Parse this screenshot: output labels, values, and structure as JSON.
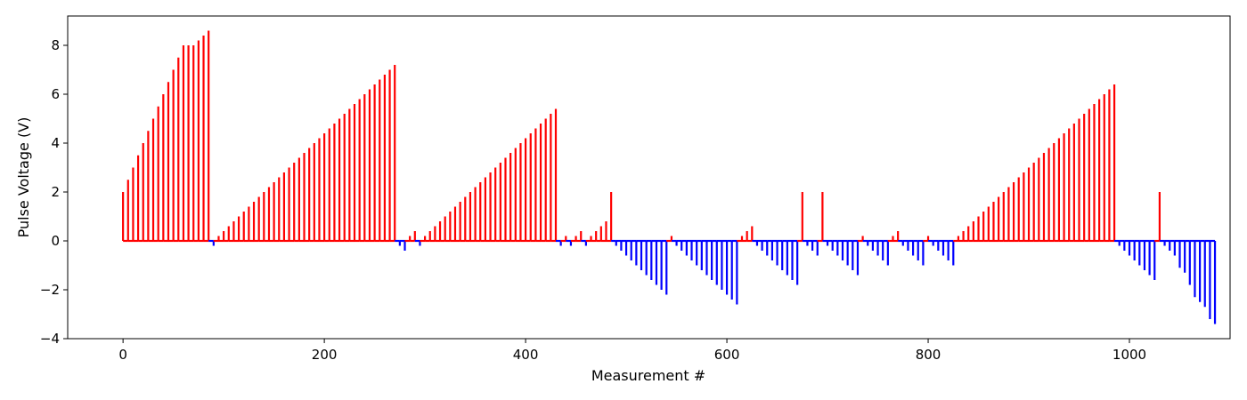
{
  "chart_data": {
    "type": "bar",
    "title": "",
    "xlabel": "Measurement #",
    "ylabel": "Pulse Voltage (V)",
    "xlim": [
      -55,
      1100
    ],
    "ylim": [
      -4,
      9.2
    ],
    "xticks": [
      0,
      200,
      400,
      600,
      800,
      1000
    ],
    "yticks": [
      -4,
      -2,
      0,
      2,
      4,
      6,
      8
    ],
    "grid": false,
    "legend": "none",
    "colors": {
      "positive": "#ff0000",
      "negative": "#0000ff"
    },
    "bar_step": 5,
    "series": [
      {
        "values": [
          2.0,
          2.5,
          3.0,
          3.5,
          4.0,
          4.5,
          5.0,
          5.5,
          6.0,
          6.5,
          7.0,
          7.5,
          8.0,
          8.0,
          8.0,
          8.2,
          8.4,
          8.6,
          -0.2,
          0.2,
          0.4,
          0.6,
          0.8,
          1.0,
          1.2,
          1.4,
          1.6,
          1.8,
          2.0,
          2.2,
          2.4,
          2.6,
          2.8,
          3.0,
          3.2,
          3.4,
          3.6,
          3.8,
          4.0,
          4.2,
          4.4,
          4.6,
          4.8,
          5.0,
          5.2,
          5.4,
          5.6,
          5.8,
          6.0,
          6.2,
          6.4,
          6.6,
          6.8,
          7.0,
          7.2,
          -0.2,
          -0.4,
          0.2,
          0.4,
          -0.2,
          0.2,
          0.4,
          0.6,
          0.8,
          1.0,
          1.2,
          1.4,
          1.6,
          1.8,
          2.0,
          2.2,
          2.4,
          2.6,
          2.8,
          3.0,
          3.2,
          3.4,
          3.6,
          3.8,
          4.0,
          4.2,
          4.4,
          4.6,
          4.8,
          5.0,
          5.2,
          5.4,
          -0.2,
          0.2,
          -0.2,
          0.2,
          0.4,
          -0.2,
          0.2,
          0.4,
          0.6,
          0.8,
          2.0,
          -0.2,
          -0.4,
          -0.6,
          -0.8,
          -1.0,
          -1.2,
          -1.4,
          -1.6,
          -1.8,
          -2.0,
          -2.2,
          0.2,
          -0.2,
          -0.4,
          -0.6,
          -0.8,
          -1.0,
          -1.2,
          -1.4,
          -1.6,
          -1.8,
          -2.0,
          -2.2,
          -2.4,
          -2.6,
          0.2,
          0.4,
          0.6,
          -0.2,
          -0.4,
          -0.6,
          -0.8,
          -1.0,
          -1.2,
          -1.4,
          -1.6,
          -1.8,
          2.0,
          -0.2,
          -0.4,
          -0.6,
          2.0,
          -0.2,
          -0.4,
          -0.6,
          -0.8,
          -1.0,
          -1.2,
          -1.4,
          0.2,
          -0.2,
          -0.4,
          -0.6,
          -0.8,
          -1.0,
          0.2,
          0.4,
          -0.2,
          -0.4,
          -0.6,
          -0.8,
          -1.0,
          0.2,
          -0.2,
          -0.4,
          -0.6,
          -0.8,
          -1.0,
          0.2,
          0.4,
          0.6,
          0.8,
          1.0,
          1.2,
          1.4,
          1.6,
          1.8,
          2.0,
          2.2,
          2.4,
          2.6,
          2.8,
          3.0,
          3.2,
          3.4,
          3.6,
          3.8,
          4.0,
          4.2,
          4.4,
          4.6,
          4.8,
          5.0,
          5.2,
          5.4,
          5.6,
          5.8,
          6.0,
          6.2,
          6.4,
          -0.2,
          -0.4,
          -0.6,
          -0.8,
          -1.0,
          -1.2,
          -1.4,
          -1.6,
          2.0,
          -0.2,
          -0.4,
          -0.6,
          -1.1,
          -1.3,
          -1.8,
          -2.3,
          -2.5,
          -2.7,
          -3.2,
          -3.4
        ]
      }
    ]
  }
}
